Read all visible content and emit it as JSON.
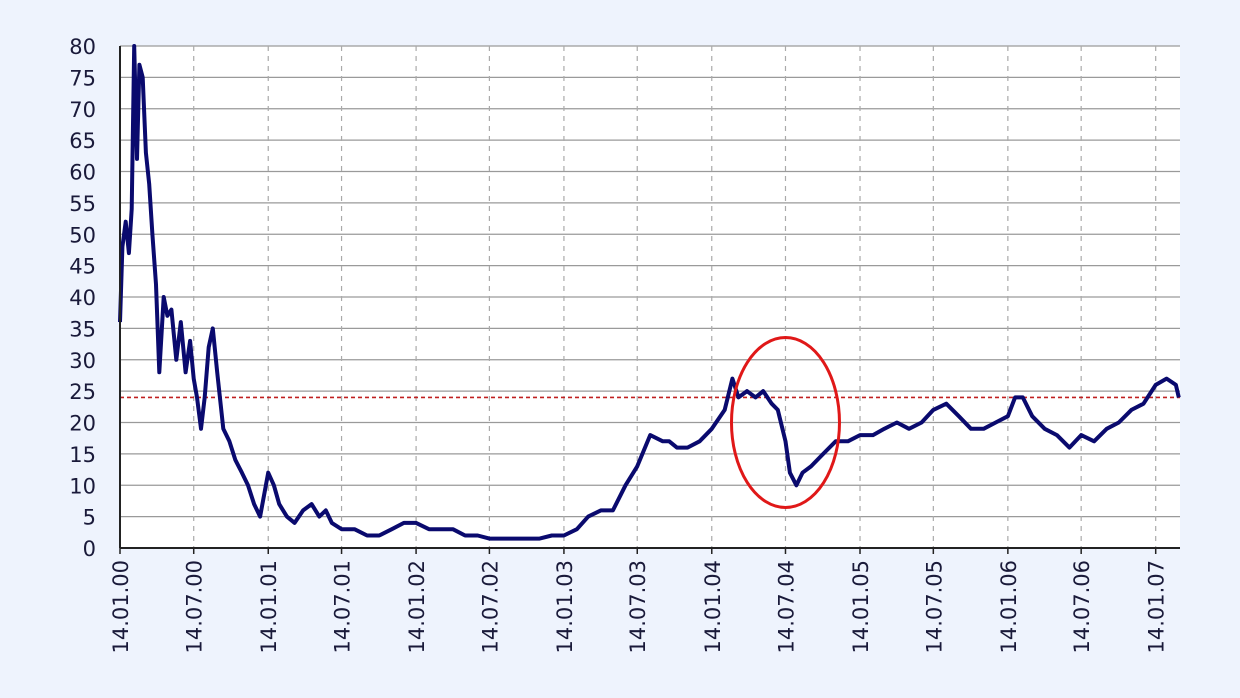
{
  "chart_data": {
    "type": "line",
    "title": "",
    "xlabel": "",
    "ylabel": "",
    "ylim": [
      0,
      80
    ],
    "yticks": [
      0,
      5,
      10,
      15,
      20,
      25,
      30,
      35,
      40,
      45,
      50,
      55,
      60,
      65,
      70,
      75,
      80
    ],
    "xticks": [
      "14.01.00",
      "14.07.00",
      "14.01.01",
      "14.07.01",
      "14.01.02",
      "14.07.02",
      "14.01.03",
      "14.07.03",
      "14.01.04",
      "14.07.04",
      "14.01.05",
      "14.07.05",
      "14.01.06",
      "14.07.06",
      "14.01.07"
    ],
    "xlim": [
      "2000-01-14",
      "2007-03-15"
    ],
    "grid": {
      "horizontal": "solid",
      "vertical": "dashed"
    },
    "reference_line": {
      "value": 24,
      "color": "#c02020",
      "style": "dashed"
    },
    "annotation": {
      "shape": "ellipse",
      "color": "#e01818",
      "around_date": "2004-07-14",
      "around_value": 20
    },
    "series_color": "#0a0a6e",
    "series": [
      {
        "x": [
          "2000-01-14",
          "2000-01-20",
          "2000-01-28",
          "2000-02-05",
          "2000-02-12",
          "2000-02-18",
          "2000-02-25",
          "2000-03-02",
          "2000-03-10",
          "2000-03-18",
          "2000-03-26",
          "2000-04-03",
          "2000-04-12",
          "2000-04-20",
          "2000-05-01",
          "2000-05-10",
          "2000-05-20",
          "2000-06-01",
          "2000-06-12",
          "2000-06-24",
          "2000-07-05",
          "2000-07-14",
          "2000-07-22",
          "2000-08-01",
          "2000-08-10",
          "2000-08-20",
          "2000-08-30",
          "2000-09-10",
          "2000-09-25",
          "2000-10-10",
          "2000-10-25",
          "2000-11-10",
          "2000-11-25",
          "2000-12-10",
          "2000-12-25",
          "2001-01-14",
          "2001-01-28",
          "2001-02-10",
          "2001-03-01",
          "2001-03-20",
          "2001-04-10",
          "2001-05-01",
          "2001-05-20",
          "2001-06-05",
          "2001-06-20",
          "2001-07-14",
          "2001-08-15",
          "2001-09-15",
          "2001-10-15",
          "2001-11-15",
          "2001-12-15",
          "2002-01-14",
          "2002-02-15",
          "2002-03-15",
          "2002-04-15",
          "2002-05-15",
          "2002-06-15",
          "2002-07-14",
          "2002-08-15",
          "2002-09-15",
          "2002-10-15",
          "2002-11-15",
          "2002-12-15",
          "2003-01-14",
          "2003-02-15",
          "2003-03-15",
          "2003-04-15",
          "2003-05-15",
          "2003-06-15",
          "2003-07-14",
          "2003-08-15",
          "2003-09-15",
          "2003-10-01",
          "2003-10-20",
          "2003-11-15",
          "2003-12-15",
          "2004-01-14",
          "2004-02-15",
          "2004-03-05",
          "2004-03-20",
          "2004-04-10",
          "2004-05-01",
          "2004-05-20",
          "2004-06-10",
          "2004-06-25",
          "2004-07-14",
          "2004-07-25",
          "2004-08-10",
          "2004-08-25",
          "2004-09-15",
          "2004-10-15",
          "2004-11-15",
          "2004-12-15",
          "2005-01-14",
          "2005-02-15",
          "2005-03-15",
          "2005-04-15",
          "2005-05-15",
          "2005-06-15",
          "2005-07-14",
          "2005-08-15",
          "2005-09-15",
          "2005-10-15",
          "2005-11-15",
          "2005-12-15",
          "2006-01-14",
          "2006-02-01",
          "2006-02-20",
          "2006-03-15",
          "2006-04-15",
          "2006-05-15",
          "2006-06-15",
          "2006-07-14",
          "2006-08-15",
          "2006-09-15",
          "2006-10-15",
          "2006-11-15",
          "2006-12-15",
          "2007-01-14",
          "2007-02-10",
          "2007-03-05",
          "2007-03-12"
        ],
        "values": [
          36,
          48,
          52,
          47,
          54,
          80,
          62,
          77,
          75,
          63,
          58,
          50,
          42,
          28,
          40,
          37,
          38,
          30,
          36,
          28,
          33,
          27,
          24,
          19,
          24,
          32,
          35,
          28,
          19,
          17,
          14,
          12,
          10,
          7,
          5,
          12,
          10,
          7,
          5,
          4,
          6,
          7,
          5,
          6,
          4,
          3,
          3,
          2,
          2,
          3,
          4,
          4,
          3,
          3,
          3,
          2,
          2,
          1.5,
          1.5,
          1.5,
          1.5,
          1.5,
          2,
          2,
          3,
          5,
          6,
          6,
          10,
          13,
          18,
          17,
          17,
          16,
          16,
          17,
          19,
          22,
          27,
          24,
          25,
          24,
          25,
          23,
          22,
          17,
          12,
          10,
          12,
          13,
          15,
          17,
          17,
          18,
          18,
          19,
          20,
          19,
          20,
          22,
          23,
          21,
          19,
          19,
          20,
          21,
          24,
          24,
          21,
          19,
          18,
          16,
          18,
          17,
          19,
          20,
          22,
          23,
          26,
          27,
          26,
          24
        ]
      }
    ]
  }
}
